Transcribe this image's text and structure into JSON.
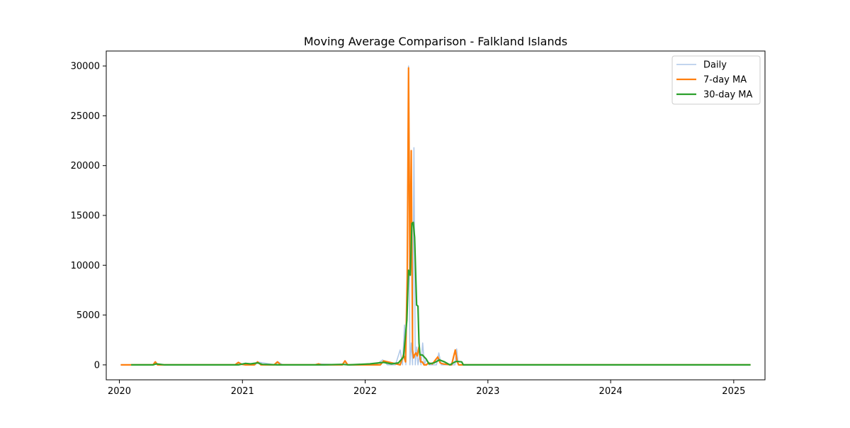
{
  "chart_data": {
    "type": "line",
    "title": "Moving Average Comparison - Falkland Islands",
    "xlabel": "",
    "ylabel": "",
    "x_ticks": [
      "2020",
      "2021",
      "2022",
      "2023",
      "2024",
      "2025"
    ],
    "y_ticks": [
      "0",
      "5000",
      "10000",
      "15000",
      "20000",
      "25000",
      "30000"
    ],
    "ylim": [
      -1500,
      31500
    ],
    "xlim": [
      "2019-11-23",
      "2025-04-04"
    ],
    "grid": false,
    "legend_position": "top-right",
    "colors": {
      "daily": "#aec7e8",
      "ma7": "#ff7f0e",
      "ma30": "#2ca02c"
    },
    "series": [
      {
        "name": "Daily",
        "x": [
          "2020-01-05",
          "2020-04-10",
          "2020-04-15",
          "2020-04-22",
          "2020-05-10",
          "2020-12-15",
          "2020-12-22",
          "2021-01-10",
          "2021-02-08",
          "2021-02-14",
          "2021-04-10",
          "2021-04-17",
          "2021-05-01",
          "2021-08-10",
          "2021-08-16",
          "2021-10-25",
          "2021-11-01",
          "2021-11-08",
          "2022-02-01",
          "2022-02-22",
          "2022-03-08",
          "2022-04-01",
          "2022-04-15",
          "2022-04-22",
          "2022-04-28",
          "2022-05-02",
          "2022-05-06",
          "2022-05-10",
          "2022-05-14",
          "2022-05-18",
          "2022-05-22",
          "2022-05-26",
          "2022-05-30",
          "2022-06-03",
          "2022-06-07",
          "2022-06-11",
          "2022-06-16",
          "2022-06-21",
          "2022-06-26",
          "2022-07-02",
          "2022-07-10",
          "2022-07-18",
          "2022-08-01",
          "2022-08-08",
          "2022-08-15",
          "2022-09-10",
          "2022-09-25",
          "2022-09-30",
          "2022-10-05",
          "2022-10-10",
          "2022-10-20",
          "2022-11-01",
          "2025-02-20"
        ],
        "y": [
          0,
          0,
          300,
          0,
          0,
          0,
          200,
          0,
          0,
          300,
          0,
          300,
          0,
          0,
          100,
          0,
          350,
          0,
          0,
          500,
          0,
          0,
          1500,
          0,
          4000,
          0,
          8600,
          30000,
          0,
          2200,
          0,
          21800,
          0,
          1800,
          0,
          900,
          0,
          2200,
          0,
          600,
          0,
          0,
          0,
          1200,
          0,
          0,
          0,
          1600,
          0,
          0,
          0,
          0,
          0
        ]
      },
      {
        "name": "7-day MA",
        "x": [
          "2020-01-05",
          "2020-01-20",
          "2020-04-10",
          "2020-04-17",
          "2020-04-24",
          "2020-05-15",
          "2020-12-10",
          "2020-12-20",
          "2020-12-30",
          "2021-01-10",
          "2021-02-05",
          "2021-02-15",
          "2021-02-25",
          "2021-04-05",
          "2021-04-15",
          "2021-04-25",
          "2021-08-05",
          "2021-08-15",
          "2021-08-25",
          "2021-10-25",
          "2021-11-02",
          "2021-11-10",
          "2022-02-15",
          "2022-02-25",
          "2022-04-15",
          "2022-04-25",
          "2022-05-01",
          "2022-05-06",
          "2022-05-10",
          "2022-05-14",
          "2022-05-18",
          "2022-05-22",
          "2022-05-25",
          "2022-05-28",
          "2022-06-01",
          "2022-06-05",
          "2022-06-10",
          "2022-06-15",
          "2022-06-20",
          "2022-06-25",
          "2022-07-02",
          "2022-07-08",
          "2022-07-20",
          "2022-08-05",
          "2022-08-12",
          "2022-08-20",
          "2022-09-15",
          "2022-09-26",
          "2022-10-01",
          "2022-10-06",
          "2022-10-12",
          "2022-10-20",
          "2022-11-01",
          "2025-02-20"
        ],
        "y": [
          0,
          0,
          0,
          300,
          0,
          0,
          0,
          250,
          50,
          0,
          0,
          300,
          0,
          0,
          300,
          0,
          0,
          100,
          0,
          0,
          400,
          0,
          0,
          400,
          0,
          1000,
          300,
          8800,
          29800,
          9000,
          21500,
          1500,
          700,
          1000,
          1200,
          900,
          1800,
          300,
          300,
          0,
          0,
          200,
          100,
          800,
          200,
          100,
          0,
          1500,
          400,
          0,
          0,
          0,
          0,
          0
        ]
      },
      {
        "name": "30-day MA",
        "x": [
          "2020-02-05",
          "2020-04-10",
          "2020-04-20",
          "2020-05-15",
          "2020-12-20",
          "2021-01-10",
          "2021-01-25",
          "2021-02-15",
          "2021-03-01",
          "2021-04-15",
          "2021-05-01",
          "2021-08-10",
          "2021-09-01",
          "2021-10-25",
          "2021-11-15",
          "2022-01-15",
          "2022-02-25",
          "2022-03-20",
          "2022-04-10",
          "2022-04-25",
          "2022-05-05",
          "2022-05-10",
          "2022-05-15",
          "2022-05-20",
          "2022-05-24",
          "2022-05-28",
          "2022-06-03",
          "2022-06-07",
          "2022-06-10",
          "2022-06-13",
          "2022-06-20",
          "2022-07-01",
          "2022-07-10",
          "2022-07-25",
          "2022-08-10",
          "2022-08-25",
          "2022-09-10",
          "2022-09-25",
          "2022-10-01",
          "2022-10-15",
          "2022-10-20",
          "2025-02-20"
        ],
        "y": [
          0,
          0,
          100,
          0,
          0,
          150,
          100,
          200,
          50,
          0,
          0,
          0,
          0,
          50,
          0,
          100,
          250,
          100,
          200,
          800,
          4500,
          9500,
          9000,
          14200,
          14300,
          12800,
          6000,
          5900,
          2200,
          1000,
          1000,
          600,
          100,
          200,
          500,
          300,
          0,
          300,
          350,
          300,
          0,
          0
        ]
      }
    ]
  }
}
